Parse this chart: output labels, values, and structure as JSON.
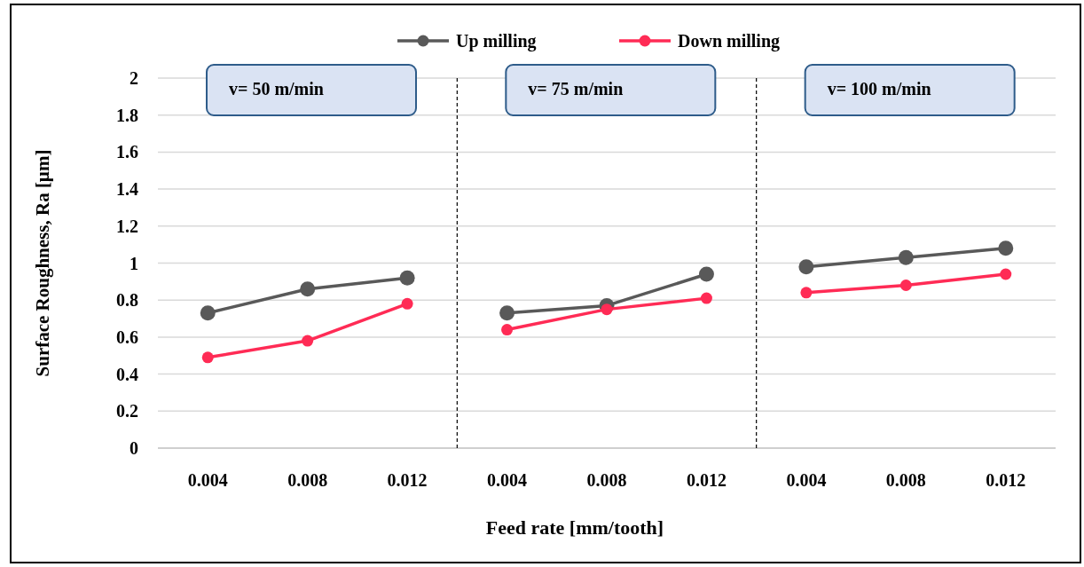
{
  "chart_data": [
    {
      "type": "line",
      "ylabel": "Surface Roughness, Ra [µm]",
      "categories": [
        "0.004",
        "0.008",
        "0.012"
      ],
      "ylim": [
        0,
        2
      ],
      "yticks": [
        0,
        0.2,
        0.4,
        0.6,
        0.8,
        1,
        1.2,
        1.4,
        1.6,
        1.8,
        2
      ],
      "grid": "y",
      "marker": "circle",
      "line_style": "solid",
      "annotations": [
        "v= 50 m/min"
      ],
      "series": [
        {
          "color": "#595959",
          "values": [
            0.73,
            0.86,
            0.92
          ]
        },
        {
          "color": "#ff2b55",
          "values": [
            0.49,
            0.58,
            0.78
          ]
        }
      ]
    },
    {
      "type": "line",
      "xlabel": "Feed rate [mm/tooth]",
      "categories": [
        "0.004",
        "0.008",
        "0.012"
      ],
      "ylim": [
        0,
        2
      ],
      "yticks": [
        0,
        0.2,
        0.4,
        0.6,
        0.8,
        1,
        1.2,
        1.4,
        1.6,
        1.8,
        2
      ],
      "tick_labels": "x",
      "grid": "y",
      "marker": "circle",
      "line_style": "solid",
      "legend": "top",
      "annotations": [
        "v= 75 m/min"
      ],
      "series": [
        {
          "name": "Up milling",
          "color": "#595959",
          "values": [
            0.73,
            0.77,
            0.94
          ]
        },
        {
          "name": "Down milling",
          "color": "#ff2b55",
          "values": [
            0.64,
            0.75,
            0.81
          ]
        }
      ]
    },
    {
      "type": "line",
      "categories": [
        "0.004",
        "0.008",
        "0.012"
      ],
      "ylim": [
        0,
        2
      ],
      "yticks": [
        0,
        0.2,
        0.4,
        0.6,
        0.8,
        1,
        1.2,
        1.4,
        1.6,
        1.8,
        2
      ],
      "tick_labels": "x",
      "grid": "y",
      "marker": "circle",
      "line_style": "solid",
      "annotations": [
        "v= 100 m/min"
      ],
      "series": [
        {
          "color": "#595959",
          "values": [
            0.98,
            1.03,
            1.08
          ]
        },
        {
          "color": "#ff2b55",
          "values": [
            0.84,
            0.88,
            0.94
          ]
        }
      ]
    }
  ]
}
